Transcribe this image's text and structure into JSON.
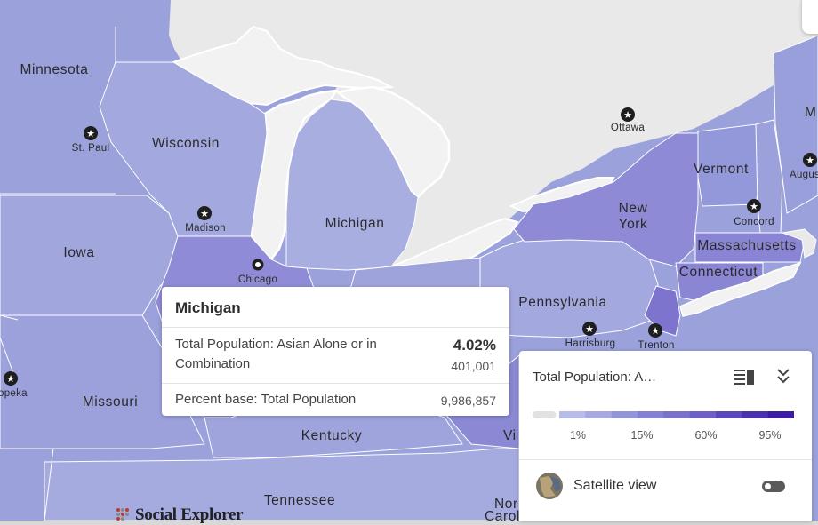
{
  "map": {
    "states": [
      "Minnesota",
      "Wisconsin",
      "Michigan",
      "Iowa",
      "Missouri",
      "Kentucky",
      "Tennessee",
      "New York",
      "Vermont",
      "Massachusetts",
      "Connecticut",
      "Pennsylvania"
    ],
    "states_partial": {
      "north_carolina": "Nor\nCarolina",
      "virginia": "Vi",
      "maine": "M"
    },
    "cities": [
      "St. Paul",
      "Madison",
      "Chicago",
      "Ottawa",
      "Concord",
      "Harrisburg",
      "Trenton",
      "Augus",
      "opeka"
    ],
    "colors": {
      "land_default": "#9aa1db",
      "land_light": "#a9aedf",
      "land_dark": "#8e89d6",
      "lake": "#f2f2f2",
      "non_us": "#e9e9e9",
      "border": "#ffffff"
    }
  },
  "popup": {
    "title": "Michigan",
    "variable": "Total Population: Asian Alone or in Combination",
    "percent": "4.02%",
    "value": "401,001",
    "base_label": "Percent base: Total Population",
    "base_value": "9,986,857"
  },
  "legend": {
    "title": "Total Population: A…",
    "icons": [
      "list-view-icon",
      "chevron-double-down-icon"
    ],
    "scale_colors": [
      "#e2e2e2",
      "#b8bde8",
      "#a6aae0",
      "#9196d8",
      "#8381d3",
      "#7a71cc",
      "#6e5fc4",
      "#5b47b8",
      "#4a31ad",
      "#3c1ca3"
    ],
    "ticks": [
      "1%",
      "15%",
      "60%",
      "95%"
    ],
    "satellite_label": "Satellite view",
    "satellite_on": false
  },
  "brand": {
    "name": "Social Explorer"
  }
}
